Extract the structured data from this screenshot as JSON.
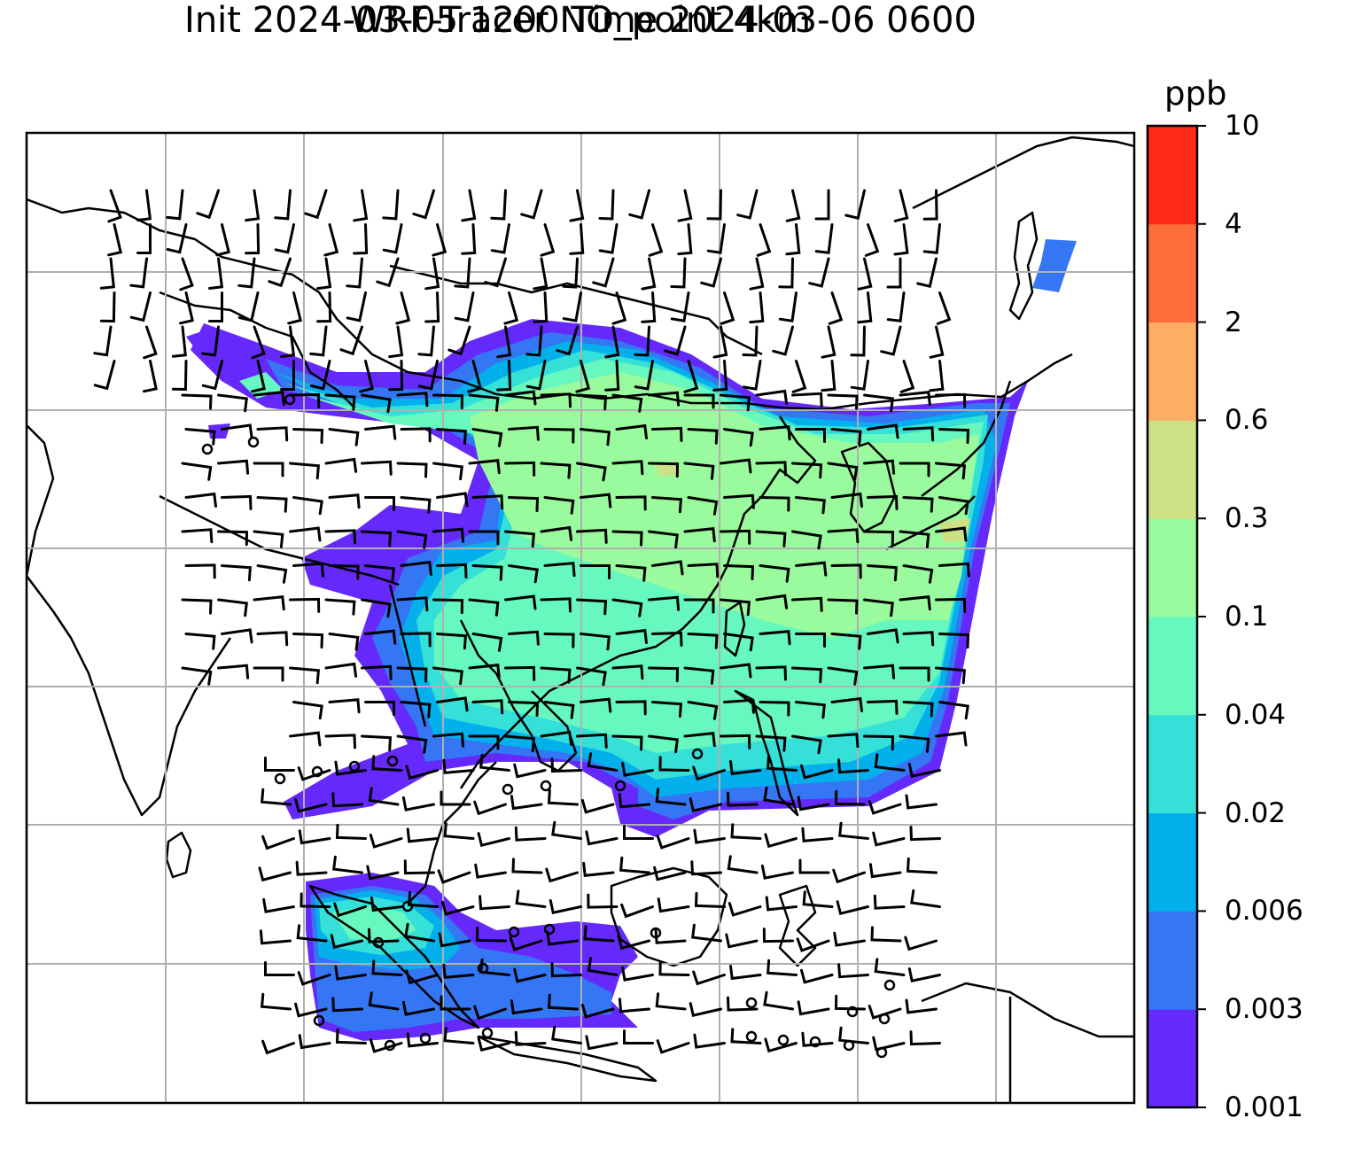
{
  "title_line1": "WRF-Tracer NO_point 4km",
  "title_line2": "Init 2024-03-05 1200 Time 2024-03-06 0600",
  "colorbar": {
    "unit": "ppb",
    "ticks": [
      "0.001",
      "0.003",
      "0.006",
      "0.02",
      "0.04",
      "0.1",
      "0.3",
      "0.6",
      "2",
      "4",
      "10"
    ],
    "colors": [
      "#6629fc",
      "#3476f4",
      "#04b0ec",
      "#34e0d8",
      "#66f8bf",
      "#99fb9d",
      "#cde184",
      "#fead62",
      "#ff6d3c",
      "#ff2a17"
    ]
  },
  "map": {
    "grid": "on",
    "features": [
      "coastlines",
      "country borders",
      "wind barbs",
      "tracer concentration field"
    ]
  }
}
